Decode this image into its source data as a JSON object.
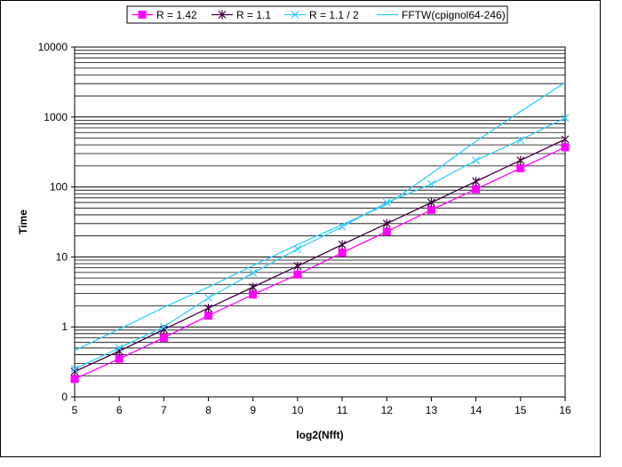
{
  "chart_data": {
    "type": "line",
    "title": "",
    "xlabel": "log2(Nfft)",
    "ylabel": "Time",
    "x": [
      5,
      6,
      7,
      8,
      9,
      10,
      11,
      12,
      13,
      14,
      15,
      16
    ],
    "x_ticks": [
      "5",
      "6",
      "7",
      "8",
      "9",
      "10",
      "11",
      "12",
      "13",
      "14",
      "15",
      "16"
    ],
    "xlim": [
      5,
      16
    ],
    "y_scale": "log",
    "ylim": [
      0.1,
      10000
    ],
    "y_ticks": [
      {
        "value": 0.1,
        "label": "0"
      },
      {
        "value": 1,
        "label": "1"
      },
      {
        "value": 10,
        "label": "10"
      },
      {
        "value": 100,
        "label": "100"
      },
      {
        "value": 1000,
        "label": "1000"
      },
      {
        "value": 10000,
        "label": "10000"
      }
    ],
    "grid": true,
    "legend_position": "top",
    "series": [
      {
        "name": "R = 1.42",
        "color": "#ff00ff",
        "marker": "square",
        "values": [
          0.18,
          0.35,
          0.7,
          1.45,
          2.9,
          5.6,
          11.5,
          23,
          47,
          93,
          185,
          370
        ]
      },
      {
        "name": "R = 1.1",
        "color": "#400040",
        "marker": "star",
        "values": [
          0.23,
          0.45,
          0.92,
          1.85,
          3.7,
          7.4,
          15,
          30,
          60,
          120,
          240,
          480
        ]
      },
      {
        "name": "R = 1.1 / 2",
        "color": "#33ccff",
        "marker": "x",
        "values": [
          0.25,
          0.5,
          1.0,
          2.6,
          5.9,
          13,
          27,
          60,
          110,
          240,
          470,
          970
        ]
      },
      {
        "name": "FFTW(cpignol64-246)",
        "color": "#33ccff",
        "marker": "none",
        "values": [
          0.46,
          0.93,
          1.9,
          3.7,
          7.5,
          15,
          29,
          56,
          155,
          450,
          1200,
          3100
        ]
      }
    ]
  }
}
